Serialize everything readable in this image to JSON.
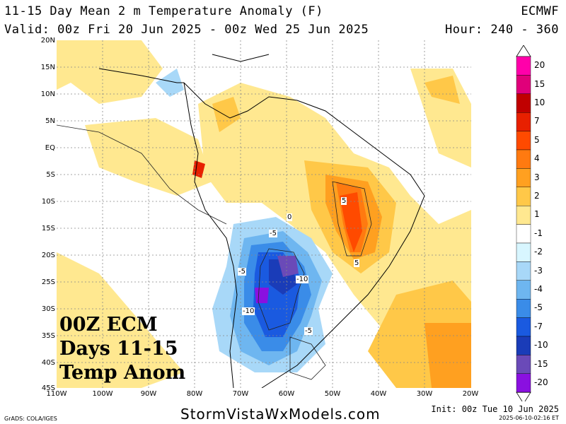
{
  "header": {
    "title": "11-15 Day Mean 2 m Temperature Anomaly (F)",
    "model": "ECMWF",
    "valid": "Valid: 00z Fri 20 Jun 2025 - 00z Wed 25 Jun 2025",
    "hours": "Hour: 240 - 360"
  },
  "map": {
    "lat_labels": [
      "20N",
      "15N",
      "10N",
      "5N",
      "EQ",
      "5S",
      "10S",
      "15S",
      "20S",
      "25S",
      "30S",
      "35S",
      "40S",
      "45S"
    ],
    "lon_labels": [
      "110W",
      "100W",
      "90W",
      "80W",
      "70W",
      "60W",
      "50W",
      "40W",
      "30W",
      "20W"
    ],
    "contour_labels": [
      "5",
      "5",
      "-5",
      "-5",
      "-10",
      "-10",
      "-5",
      "0"
    ]
  },
  "overlay": {
    "line1": "00Z ECM",
    "line2": "Days 11-15",
    "line3": "Temp Anom"
  },
  "colorbar": {
    "labels": [
      "20",
      "15",
      "10",
      "7",
      "5",
      "4",
      "3",
      "2",
      "1",
      "-1",
      "-2",
      "-3",
      "-4",
      "-5",
      "-7",
      "-10",
      "-15",
      "-20"
    ],
    "colors": [
      "#ff00aa",
      "#e0007a",
      "#c00000",
      "#e82000",
      "#ff4a00",
      "#ff7a10",
      "#ffa020",
      "#ffc848",
      "#ffe890",
      "#ffffff",
      "#d8f6ff",
      "#a8d8f8",
      "#6eb6f0",
      "#3a8ce8",
      "#1a5ae0",
      "#1a3cb8",
      "#6a4ab8",
      "#8a10e0"
    ]
  },
  "footer": {
    "site": "StormVistaWxModels.com",
    "credit": "GrADS: COLA/IGES",
    "init": "Init: 00z Tue 10 Jun 2025",
    "stamp": "2025-06-10-02:16 ET"
  }
}
